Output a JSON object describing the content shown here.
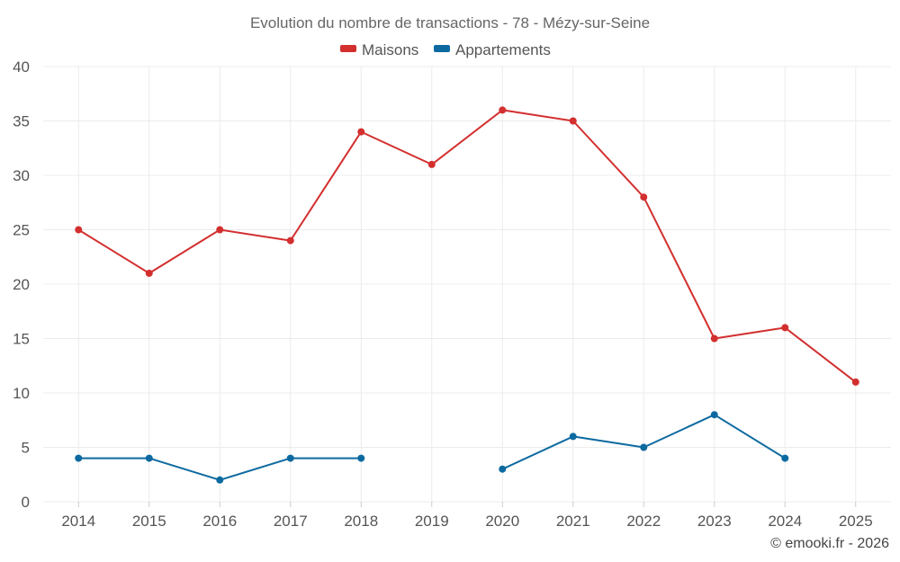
{
  "chart_data": {
    "type": "line",
    "title": "Evolution du nombre de transactions - 78 - Mézy-sur-Seine",
    "categories": [
      "2014",
      "2015",
      "2016",
      "2017",
      "2018",
      "2019",
      "2020",
      "2021",
      "2022",
      "2023",
      "2024",
      "2025"
    ],
    "series": [
      {
        "name": "Maisons",
        "color": "#d32f2f",
        "values": [
          25,
          21,
          25,
          24,
          34,
          31,
          36,
          35,
          28,
          15,
          16,
          11
        ]
      },
      {
        "name": "Appartements",
        "color": "#0d6aa0",
        "values": [
          4,
          4,
          2,
          4,
          4,
          null,
          3,
          6,
          5,
          8,
          4,
          null
        ]
      }
    ],
    "ylim": [
      0,
      40
    ],
    "yticks": [
      0,
      5,
      10,
      15,
      20,
      25,
      30,
      35,
      40
    ],
    "xlabel": "",
    "ylabel": "",
    "grid": true,
    "legend": "top-center"
  },
  "credit": "© emooki.fr - 2026"
}
